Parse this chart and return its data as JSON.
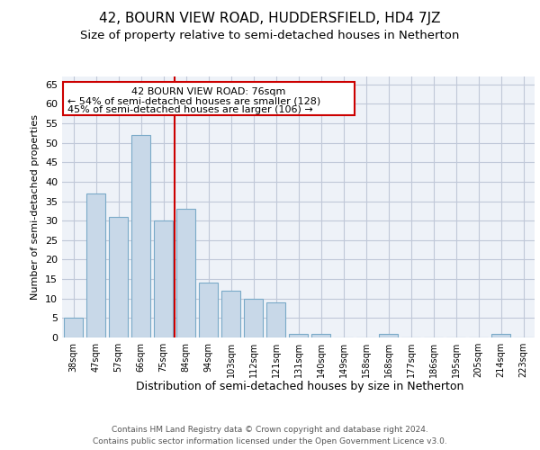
{
  "title": "42, BOURN VIEW ROAD, HUDDERSFIELD, HD4 7JZ",
  "subtitle": "Size of property relative to semi-detached houses in Netherton",
  "xlabel": "Distribution of semi-detached houses by size in Netherton",
  "ylabel": "Number of semi-detached properties",
  "categories": [
    "38sqm",
    "47sqm",
    "57sqm",
    "66sqm",
    "75sqm",
    "84sqm",
    "94sqm",
    "103sqm",
    "112sqm",
    "121sqm",
    "131sqm",
    "140sqm",
    "149sqm",
    "158sqm",
    "168sqm",
    "177sqm",
    "186sqm",
    "195sqm",
    "205sqm",
    "214sqm",
    "223sqm"
  ],
  "values": [
    5,
    37,
    31,
    52,
    30,
    33,
    14,
    12,
    10,
    9,
    1,
    1,
    0,
    0,
    1,
    0,
    0,
    0,
    0,
    1,
    0
  ],
  "bar_color": "#c8d8e8",
  "bar_edge_color": "#7aaac8",
  "grid_color": "#c0c8d8",
  "background_color": "#eef2f8",
  "vline_x": 4.5,
  "vline_color": "#cc0000",
  "annotation_title": "42 BOURN VIEW ROAD: 76sqm",
  "annotation_line1": "← 54% of semi-detached houses are smaller (128)",
  "annotation_line2": "45% of semi-detached houses are larger (106) →",
  "annotation_box_color": "#cc0000",
  "ylim": [
    0,
    67
  ],
  "yticks": [
    0,
    5,
    10,
    15,
    20,
    25,
    30,
    35,
    40,
    45,
    50,
    55,
    60,
    65
  ],
  "footer1": "Contains HM Land Registry data © Crown copyright and database right 2024.",
  "footer2": "Contains public sector information licensed under the Open Government Licence v3.0.",
  "title_fontsize": 11,
  "subtitle_fontsize": 9.5
}
